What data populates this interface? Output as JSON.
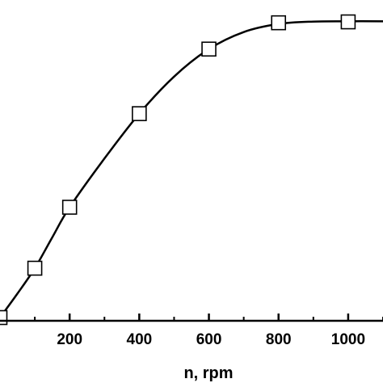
{
  "chart_data": {
    "type": "scatter",
    "title": "",
    "xlabel": "n, rpm",
    "ylabel": "",
    "xlim": [
      0,
      1100
    ],
    "ylim": [
      0,
      1.0
    ],
    "x_ticks": [
      200,
      400,
      600,
      800,
      1000
    ],
    "x_tick_labels": [
      "200",
      "400",
      "600",
      "800",
      "1000"
    ],
    "grid": false,
    "series": [
      {
        "marker": "open-square",
        "points": [
          {
            "x": 0,
            "y": 0.0
          },
          {
            "x": 100,
            "y": 0.165
          },
          {
            "x": 200,
            "y": 0.369
          },
          {
            "x": 400,
            "y": 0.682
          },
          {
            "x": 600,
            "y": 0.898
          },
          {
            "x": 800,
            "y": 0.986
          },
          {
            "x": 1000,
            "y": 0.989
          }
        ]
      }
    ],
    "fit_curve": [
      {
        "x": 0,
        "y": 0.0
      },
      {
        "x": 50,
        "y": 0.08
      },
      {
        "x": 100,
        "y": 0.165
      },
      {
        "x": 150,
        "y": 0.268
      },
      {
        "x": 200,
        "y": 0.369
      },
      {
        "x": 300,
        "y": 0.532
      },
      {
        "x": 400,
        "y": 0.682
      },
      {
        "x": 500,
        "y": 0.806
      },
      {
        "x": 600,
        "y": 0.898
      },
      {
        "x": 700,
        "y": 0.955
      },
      {
        "x": 800,
        "y": 0.982
      },
      {
        "x": 900,
        "y": 0.99
      },
      {
        "x": 1000,
        "y": 0.991
      },
      {
        "x": 1100,
        "y": 0.991
      }
    ]
  }
}
